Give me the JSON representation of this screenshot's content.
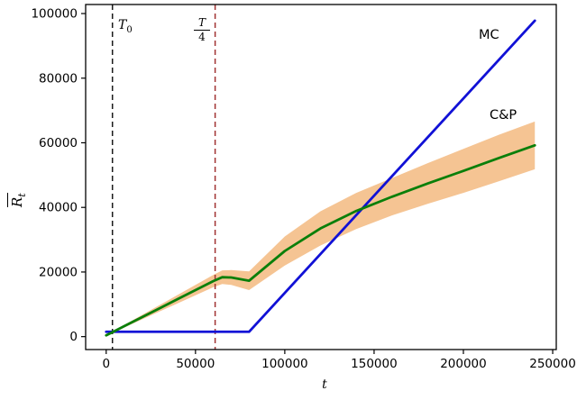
{
  "figure": {
    "background": "#ffffff",
    "ylabel": {
      "base": "R",
      "sub": "t",
      "overline": true
    }
  },
  "annotations": {
    "t0": {
      "base": "T",
      "sub": "0"
    },
    "t_over_4": {
      "numerator": "T",
      "denominator": "4"
    }
  },
  "chart_data": {
    "type": "line",
    "title": "",
    "xlabel": "t",
    "ylabel": "R̄_t",
    "xlim": [
      -11500,
      252000
    ],
    "ylim": [
      -4000,
      102800
    ],
    "grid": false,
    "legend_position": "inline-annotations",
    "xticks": {
      "values": [
        0,
        50000,
        100000,
        150000,
        200000,
        250000
      ],
      "labels": [
        "0",
        "50000",
        "100000",
        "150000",
        "200000",
        "250000"
      ]
    },
    "yticks": {
      "values": [
        0,
        20000,
        40000,
        60000,
        80000,
        100000
      ],
      "labels": [
        "0",
        "20000",
        "40000",
        "60000",
        "80000",
        "100000"
      ]
    },
    "vlines": [
      {
        "id": "T0",
        "x": 3500,
        "label": "T_0",
        "color": "#1a1a1a",
        "style": "dashed"
      },
      {
        "id": "T4",
        "x": 61000,
        "label": "T/4",
        "color": "#a03232",
        "style": "dashed"
      }
    ],
    "series": [
      {
        "id": "mc",
        "name": "MC",
        "color": "#1111d6",
        "x": [
          0,
          80000,
          240000
        ],
        "y": [
          1500,
          1500,
          97800
        ]
      },
      {
        "id": "cp",
        "name": "C&P",
        "color": "#0a7f0a",
        "x": [
          0,
          10000,
          20000,
          30000,
          40000,
          50000,
          60000,
          65000,
          70000,
          80000,
          100000,
          120000,
          140000,
          160000,
          180000,
          200000,
          220000,
          240000
        ],
        "y": [
          400,
          3200,
          6000,
          8800,
          11600,
          14400,
          17200,
          18400,
          18300,
          17300,
          26500,
          33500,
          38900,
          43300,
          47400,
          51300,
          55300,
          59200
        ],
        "band": {
          "color": "#f5c493",
          "upper": [
            400,
            3600,
            6700,
            9800,
            12900,
            16000,
            19100,
            20500,
            20600,
            20200,
            31000,
            38800,
            44500,
            49100,
            53700,
            58100,
            62500,
            66600
          ],
          "lower": [
            400,
            2800,
            5300,
            7800,
            10300,
            12800,
            15300,
            16300,
            16000,
            14400,
            22000,
            28200,
            33300,
            37500,
            41100,
            44500,
            48100,
            51800
          ]
        }
      }
    ]
  }
}
